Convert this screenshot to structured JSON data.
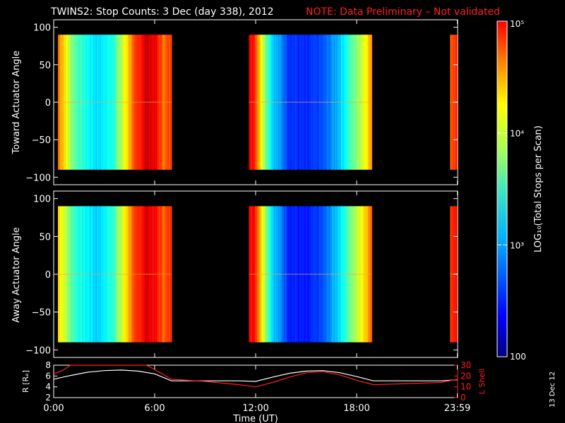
{
  "title": {
    "main": "TWINS2: Stop Counts:  3 Dec (day 338), 2012",
    "note": "NOTE: Data Preliminary – Not validated"
  },
  "panels": {
    "top": {
      "ylabel": "Toward Actuator Angle",
      "yticks": [
        "100",
        "50",
        "0",
        "−50",
        "−100"
      ]
    },
    "bottom": {
      "ylabel": "Away Actuator Angle",
      "yticks": [
        "100",
        "50",
        "0",
        "−50",
        "−100"
      ]
    },
    "orbit": {
      "ylabel_left": "R [Rₑ]",
      "ylabel_right": "L Shell",
      "yticks_left": [
        "8",
        "6",
        "4",
        "2"
      ],
      "yticks_right": [
        "30",
        "20",
        "10",
        "0"
      ]
    }
  },
  "xaxis": {
    "label": "Time (UT)",
    "ticks": [
      "0:00",
      "6:00",
      "12:00",
      "18:00",
      "23:59"
    ]
  },
  "colorbar": {
    "label": "LOG₁₀(Total Stops per Scan)",
    "ticks": [
      "10⁵",
      "10⁴",
      "10³",
      "100"
    ]
  },
  "date_stamp": "13 Dec 12",
  "colors": {
    "title_note": "#ff2020",
    "l_shell_line": "#ff2020",
    "radius_line": "#ffffff"
  },
  "chart_data": [
    {
      "type": "heatmap",
      "panel": "Toward Actuator Angle",
      "x_unit": "hours UT",
      "x_range": [
        0,
        24
      ],
      "y_range": [
        -110,
        110
      ],
      "y_data_extent": [
        -90,
        90
      ],
      "color_scale": "log10",
      "color_range": [
        100,
        100000
      ],
      "data_intervals_hours": [
        [
          0.25,
          7.0
        ],
        [
          11.6,
          18.9
        ],
        [
          23.55,
          24.0
        ]
      ],
      "column_log10_profile": [
        {
          "t": 0.25,
          "v": 4.3
        },
        {
          "t": 0.6,
          "v": 4.0
        },
        {
          "t": 1.0,
          "v": 3.55
        },
        {
          "t": 1.5,
          "v": 3.3
        },
        {
          "t": 2.0,
          "v": 3.15
        },
        {
          "t": 2.5,
          "v": 3.05
        },
        {
          "t": 3.0,
          "v": 3.1
        },
        {
          "t": 3.5,
          "v": 3.25
        },
        {
          "t": 4.0,
          "v": 3.65
        },
        {
          "t": 4.5,
          "v": 4.15
        },
        {
          "t": 5.0,
          "v": 4.5
        },
        {
          "t": 5.5,
          "v": 4.8
        },
        {
          "t": 6.0,
          "v": 4.65
        },
        {
          "t": 6.5,
          "v": 4.3
        },
        {
          "t": 7.0,
          "v": 4.45
        },
        {
          "t": 11.6,
          "v": 4.75
        },
        {
          "t": 12.0,
          "v": 4.4
        },
        {
          "t": 12.5,
          "v": 3.6
        },
        {
          "t": 13.0,
          "v": 3.0
        },
        {
          "t": 14.0,
          "v": 2.55
        },
        {
          "t": 15.0,
          "v": 2.45
        },
        {
          "t": 16.0,
          "v": 2.6
        },
        {
          "t": 17.0,
          "v": 3.0
        },
        {
          "t": 18.0,
          "v": 3.55
        },
        {
          "t": 18.9,
          "v": 4.2
        },
        {
          "t": 23.55,
          "v": 4.4
        },
        {
          "t": 24.0,
          "v": 4.6
        }
      ]
    },
    {
      "type": "heatmap",
      "panel": "Away Actuator Angle",
      "x_unit": "hours UT",
      "x_range": [
        0,
        24
      ],
      "y_range": [
        -110,
        110
      ],
      "y_data_extent": [
        -90,
        90
      ],
      "color_scale": "log10",
      "color_range": [
        100,
        100000
      ],
      "data_intervals_hours": [
        [
          0.25,
          7.0
        ],
        [
          11.6,
          18.9
        ],
        [
          23.55,
          24.0
        ]
      ],
      "column_log10_profile": [
        {
          "t": 0.25,
          "v": 4.0
        },
        {
          "t": 0.6,
          "v": 3.75
        },
        {
          "t": 1.0,
          "v": 3.4
        },
        {
          "t": 1.5,
          "v": 3.2
        },
        {
          "t": 2.0,
          "v": 3.1
        },
        {
          "t": 2.5,
          "v": 3.0
        },
        {
          "t": 3.0,
          "v": 3.1
        },
        {
          "t": 3.5,
          "v": 3.3
        },
        {
          "t": 4.0,
          "v": 3.7
        },
        {
          "t": 4.5,
          "v": 4.2
        },
        {
          "t": 5.0,
          "v": 4.5
        },
        {
          "t": 5.5,
          "v": 4.75
        },
        {
          "t": 6.0,
          "v": 4.6
        },
        {
          "t": 6.5,
          "v": 4.35
        },
        {
          "t": 7.0,
          "v": 4.5
        },
        {
          "t": 11.6,
          "v": 4.7
        },
        {
          "t": 12.0,
          "v": 4.5
        },
        {
          "t": 12.5,
          "v": 3.7
        },
        {
          "t": 13.0,
          "v": 3.0
        },
        {
          "t": 14.0,
          "v": 2.5
        },
        {
          "t": 15.0,
          "v": 2.4
        },
        {
          "t": 16.0,
          "v": 2.6
        },
        {
          "t": 17.0,
          "v": 3.1
        },
        {
          "t": 18.0,
          "v": 3.7
        },
        {
          "t": 18.9,
          "v": 4.35
        },
        {
          "t": 23.55,
          "v": 4.5
        },
        {
          "t": 24.0,
          "v": 4.7
        }
      ]
    },
    {
      "type": "line",
      "panel": "orbit",
      "x_unit": "hours UT",
      "x_range": [
        0,
        24
      ],
      "series": [
        {
          "name": "R [Rₑ]",
          "axis": "left",
          "ylim": [
            2,
            8
          ],
          "x": [
            0,
            1,
            2,
            3,
            4,
            5,
            6,
            7,
            8,
            9,
            10,
            11,
            12,
            13,
            14,
            15,
            16,
            17,
            18,
            19,
            20,
            21,
            22,
            23,
            24
          ],
          "y": [
            5.4,
            6.1,
            6.7,
            7.0,
            7.1,
            6.9,
            6.4,
            5.1,
            5.1,
            5.1,
            5.1,
            5.1,
            5.0,
            5.8,
            6.5,
            6.9,
            7.0,
            6.6,
            5.9,
            5.1,
            5.1,
            5.1,
            5.1,
            5.1,
            5.3
          ]
        },
        {
          "name": "L Shell",
          "axis": "right",
          "ylim": [
            0,
            30
          ],
          "x": [
            0,
            0.5,
            1,
            2,
            3,
            4,
            5,
            5.5,
            6,
            7,
            9,
            11,
            12,
            13,
            14,
            15,
            16,
            17,
            18,
            19,
            21,
            23,
            24
          ],
          "y": [
            22,
            25,
            32,
            40,
            40,
            40,
            36,
            32,
            26,
            17,
            15,
            12,
            10,
            14,
            19,
            23,
            24,
            21,
            16,
            12,
            13,
            14,
            17
          ]
        }
      ]
    }
  ]
}
